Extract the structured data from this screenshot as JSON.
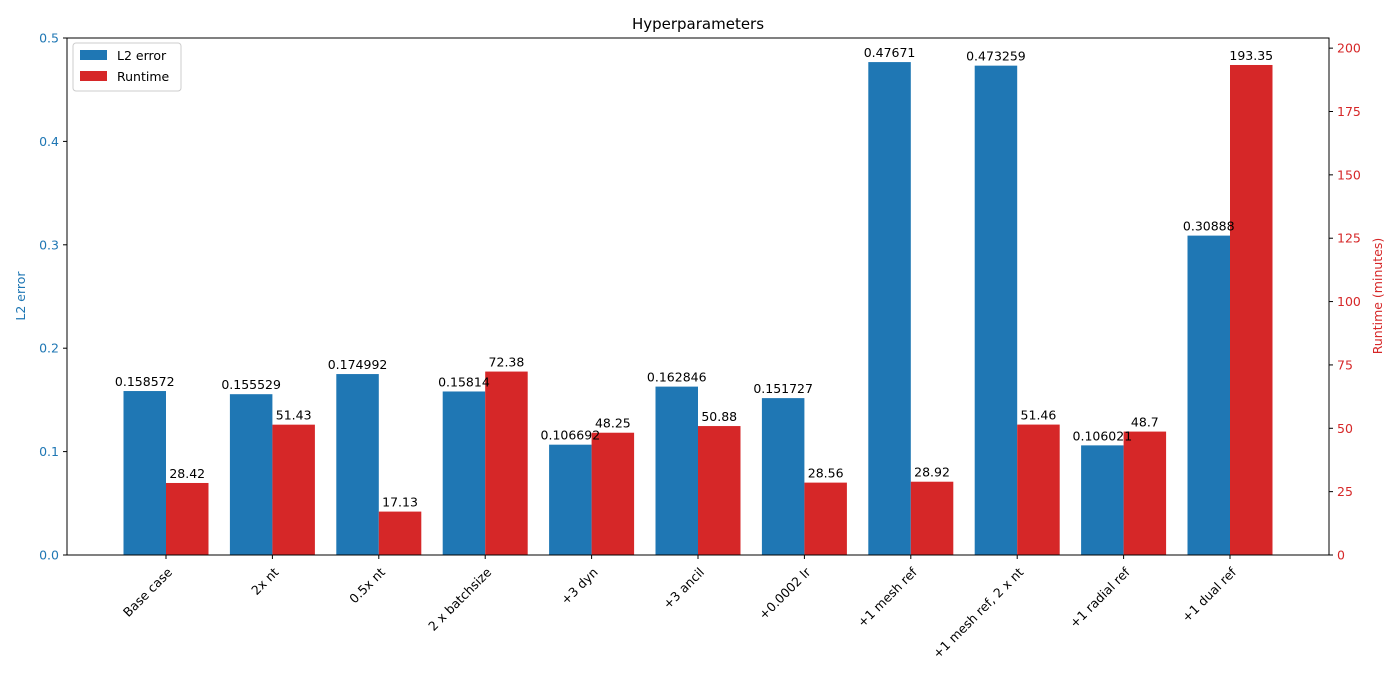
{
  "chart_data": {
    "type": "bar",
    "title": "Hyperparameters",
    "categories": [
      "Base case",
      "2x nt",
      "0.5x nt",
      "2 x batchsize",
      "+3 dyn",
      "+3 ancil",
      "+0.0002 lr",
      "+1 mesh ref",
      "+1 mesh ref, 2 x nt",
      "+1 radial ref",
      "+1 dual ref"
    ],
    "series": [
      {
        "name": "L2 error",
        "axis": "left",
        "color": "#1f77b4",
        "values": [
          0.158572,
          0.155529,
          0.174992,
          0.15814,
          0.106692,
          0.162846,
          0.151727,
          0.47671,
          0.473259,
          0.106021,
          0.30888
        ],
        "labels": [
          "0.158572",
          "0.155529",
          "0.174992",
          "0.15814",
          "0.106692",
          "0.162846",
          "0.151727",
          "0.47671",
          "0.473259",
          "0.106021",
          "0.30888"
        ]
      },
      {
        "name": "Runtime",
        "axis": "right",
        "color": "#d62728",
        "values": [
          28.42,
          51.43,
          17.13,
          72.38,
          48.25,
          50.88,
          28.56,
          28.92,
          51.46,
          48.7,
          193.35
        ],
        "labels": [
          "28.42",
          "51.43",
          "17.13",
          "72.38",
          "48.25",
          "50.88",
          "28.56",
          "28.92",
          "51.46",
          "48.7",
          "193.35"
        ]
      }
    ],
    "left_axis": {
      "label": "L2 error",
      "color": "#1f77b4",
      "ylim": [
        0,
        0.5
      ],
      "ticks": [
        "0.0",
        "0.1",
        "0.2",
        "0.3",
        "0.4",
        "0.5"
      ]
    },
    "right_axis": {
      "label": "Runtime (minutes)",
      "color": "#d62728",
      "ylim": [
        0,
        204
      ],
      "ticks": [
        "0",
        "25",
        "50",
        "75",
        "100",
        "125",
        "150",
        "175",
        "200"
      ]
    },
    "legend_position": "top-left",
    "grid": false
  }
}
